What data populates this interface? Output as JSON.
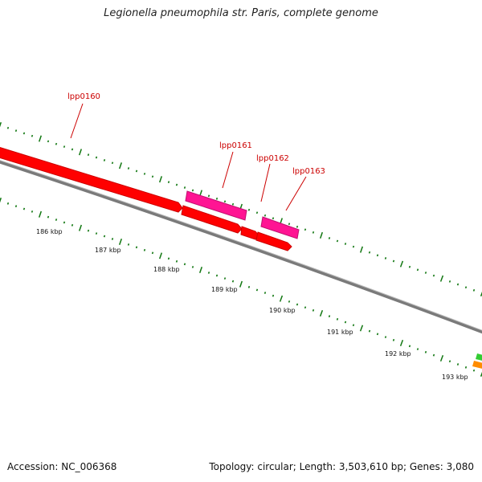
{
  "title": "Legionella pneumophila str. Paris, complete genome",
  "footer": {
    "accession": "Accession: NC_006368",
    "summary": "Topology: circular; Length: 3,503,610 bp; Genes: 3,080"
  },
  "genes": [
    {
      "id": "lpp0160",
      "label": "lpp0160",
      "strand": "forward",
      "color": "#ff0000"
    },
    {
      "id": "lpp0161",
      "label": "lpp0161",
      "strand": "reverse",
      "color": "#ff1493"
    },
    {
      "id": "lpp0162",
      "label": "lpp0162",
      "strand": "forward",
      "color": "#ff0000"
    },
    {
      "id": "lpp0163",
      "label": "lpp0163",
      "strand": "reverse",
      "color": "#ff1493"
    }
  ],
  "scale_labels": [
    "186 kbp",
    "187 kbp",
    "188 kbp",
    "189 kbp",
    "190 kbp",
    "191 kbp",
    "192 kbp",
    "193 kbp"
  ],
  "colors": {
    "forward_gene": "#ff0000",
    "reverse_gene": "#ff1493",
    "backbone": "#808080",
    "ticks": "#117711",
    "label_line": "#cc0000"
  }
}
